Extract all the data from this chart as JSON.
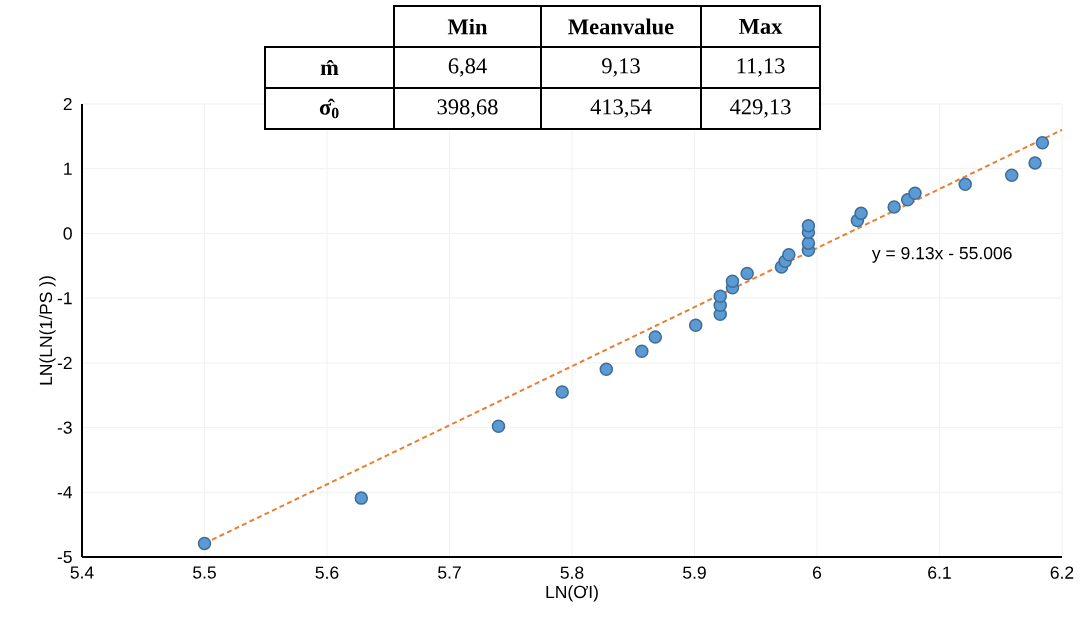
{
  "chart_data": {
    "type": "scatter",
    "xlabel": "LN(ƠI)",
    "ylabel": "LN(LN(1/PS ))",
    "xlim": [
      5.4,
      6.2
    ],
    "ylim": [
      -5,
      2
    ],
    "xticks": [
      5.4,
      5.5,
      5.6,
      5.7,
      5.8,
      5.9,
      6,
      6.1,
      6.2
    ],
    "yticks": [
      -5,
      -4,
      -3,
      -2,
      -1,
      0,
      1,
      2
    ],
    "grid": true,
    "series": [
      {
        "type": "scatter",
        "color": "#5b9bd5",
        "marker": "circle",
        "x": [
          5.5,
          5.628,
          5.74,
          5.792,
          5.828,
          5.857,
          5.868,
          5.901,
          5.921,
          5.921,
          5.921,
          5.931,
          5.931,
          5.943,
          5.971,
          5.974,
          5.977,
          5.993,
          5.993,
          5.993,
          5.993,
          6.033,
          6.036,
          6.063,
          6.074,
          6.08,
          6.121,
          6.159,
          6.178,
          6.184
        ],
        "values": [
          -4.79,
          -4.09,
          -2.98,
          -2.45,
          -2.1,
          -1.82,
          -1.6,
          -1.42,
          -1.25,
          -1.11,
          -0.97,
          -0.84,
          -0.74,
          -0.62,
          -0.52,
          -0.43,
          -0.33,
          -0.26,
          -0.15,
          0.02,
          0.12,
          0.2,
          0.31,
          0.41,
          0.52,
          0.62,
          0.76,
          0.9,
          1.09,
          1.4
        ]
      },
      {
        "type": "line",
        "color": "#ed7d31",
        "line_style": "dashed",
        "marker": "none",
        "x": [
          5.5,
          6.2
        ],
        "values": [
          -4.79,
          1.6
        ]
      }
    ],
    "annotations": [
      "Min",
      "Meanvalue",
      "Max",
      "m̂",
      "6,84",
      "9,13",
      "11,13",
      "σ̂$_{0}$",
      "398,68",
      "413,54",
      "429,13",
      "y = 9.13x - 55.006"
    ]
  }
}
